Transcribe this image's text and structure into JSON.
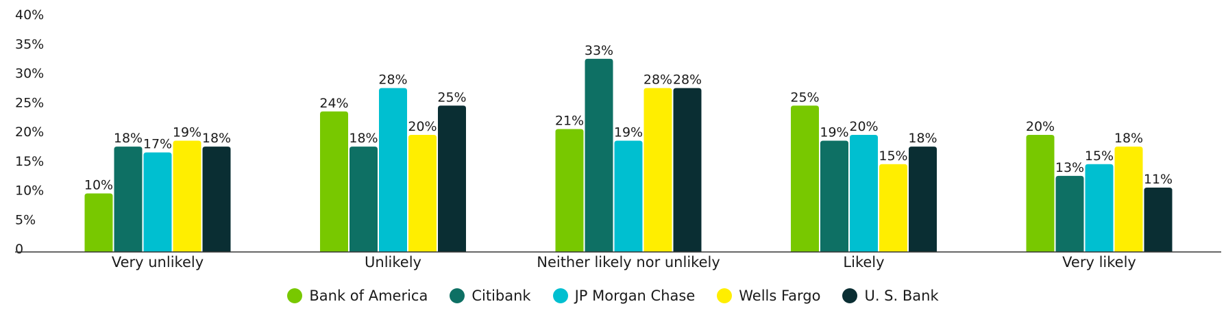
{
  "chart_data": {
    "type": "bar",
    "categories": [
      "Very unlikely",
      "Unlikely",
      "Neither likely nor unlikely",
      "Likely",
      "Very likely"
    ],
    "series": [
      {
        "name": "Bank of America",
        "color": "#78c800",
        "values": [
          10,
          24,
          21,
          25,
          20
        ],
        "labels": [
          "10%",
          "24%",
          "21%",
          "25%",
          "20%"
        ]
      },
      {
        "name": "Citibank",
        "color": "#0e7064",
        "values": [
          18,
          18,
          33,
          19,
          13
        ],
        "labels": [
          "18%",
          "18%",
          "33%",
          "19%",
          "13%"
        ]
      },
      {
        "name": "JP Morgan Chase",
        "color": "#00bfd0",
        "values": [
          17,
          28,
          19,
          20,
          15
        ],
        "labels": [
          "17%",
          "28%",
          "19%",
          "20%",
          "15%"
        ]
      },
      {
        "name": "Wells Fargo",
        "color": "#ffee00",
        "values": [
          19,
          20,
          28,
          15,
          18
        ],
        "labels": [
          "19%",
          "20%",
          "28%",
          "15%",
          "18%"
        ]
      },
      {
        "name": "U. S. Bank",
        "color": "#0a2e33",
        "values": [
          18,
          25,
          28,
          18,
          11
        ],
        "labels": [
          "18%",
          "25%",
          "28%",
          "18%",
          "11%"
        ]
      }
    ],
    "ylim": [
      0,
      40
    ],
    "yticks": [
      0,
      5,
      10,
      15,
      20,
      25,
      30,
      35,
      40
    ],
    "ytick_labels": [
      "0",
      "5%",
      "10%",
      "15%",
      "20%",
      "25%",
      "30%",
      "35%",
      "40%"
    ],
    "grid": false,
    "legend_position": "bottom"
  }
}
